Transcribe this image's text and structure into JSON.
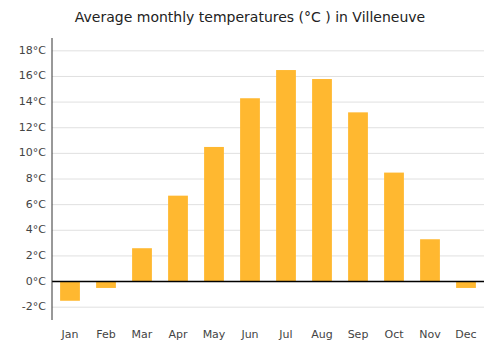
{
  "chart_data": {
    "type": "bar",
    "title": "Average monthly temperatures (°C ) in Villeneuve",
    "categories": [
      "Jan",
      "Feb",
      "Mar",
      "Apr",
      "May",
      "Jun",
      "Jul",
      "Aug",
      "Sep",
      "Oct",
      "Nov",
      "Dec"
    ],
    "values": [
      -1.5,
      -0.5,
      2.6,
      6.7,
      10.5,
      14.3,
      16.5,
      15.8,
      13.2,
      8.5,
      3.3,
      -0.5
    ],
    "color": "#FFB830",
    "ylim": [
      -3,
      19
    ],
    "yticks": [
      {
        "value": -2,
        "label": "-2°C"
      },
      {
        "value": 0,
        "label": "0°C"
      },
      {
        "value": 2,
        "label": "2°C"
      },
      {
        "value": 4,
        "label": "4°C"
      },
      {
        "value": 6,
        "label": "6°C"
      },
      {
        "value": 8,
        "label": "8°C"
      },
      {
        "value": 10,
        "label": "10°C"
      },
      {
        "value": 12,
        "label": "12°C"
      },
      {
        "value": 14,
        "label": "14°C"
      },
      {
        "value": 16,
        "label": "16°C"
      },
      {
        "value": 18,
        "label": "18°C"
      }
    ],
    "grid": true
  }
}
